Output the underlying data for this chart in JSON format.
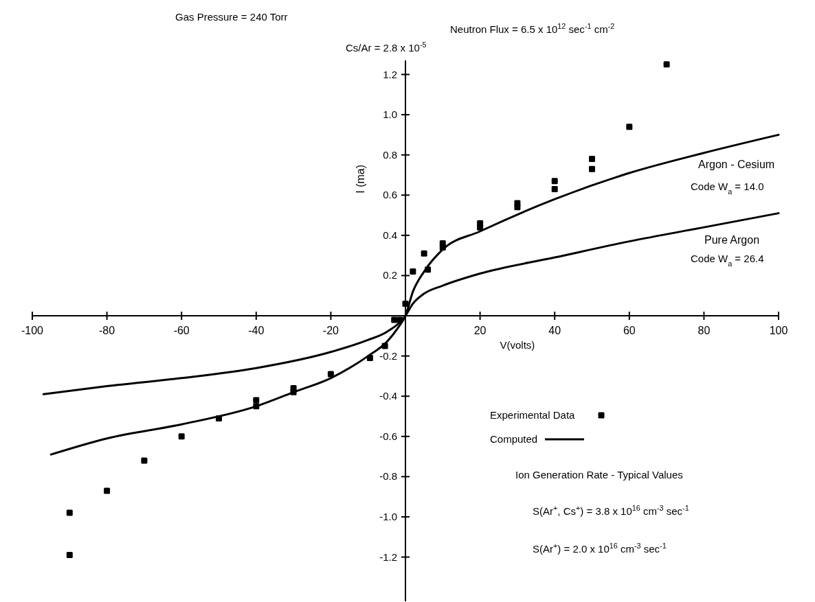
{
  "chart_data": {
    "type": "scatter",
    "xlabel": "V(volts)",
    "ylabel": "I (ma)",
    "xlim": [
      -100,
      100
    ],
    "ylim": [
      -1.42,
      1.27
    ],
    "xticks": [
      -100,
      -80,
      -60,
      -40,
      -20,
      20,
      40,
      60,
      80,
      100
    ],
    "yticks": [
      {
        "value": 1.2,
        "label": "1.2"
      },
      {
        "value": 1,
        "label": "1.0"
      },
      0.8,
      0.6,
      0.4,
      0.2,
      -0.2,
      -0.4,
      -0.6,
      -0.8,
      {
        "value": -1,
        "label": "-1.0"
      },
      -1.2
    ],
    "grid": false,
    "legend": "bottom right",
    "marker": "square",
    "series": [
      {
        "name": "Experimental Data",
        "color": "#000000",
        "x": [
          0,
          2,
          5,
          6,
          10,
          10,
          20,
          20,
          30,
          30,
          40,
          40,
          50,
          50,
          60,
          70,
          -1.5,
          -3,
          -5.5,
          -9.5,
          -20,
          -30,
          -30,
          -40,
          -40,
          -50,
          -60,
          -70,
          -80,
          -90,
          -90
        ],
        "values": [
          0.06,
          0.22,
          0.31,
          0.23,
          0.36,
          0.34,
          0.46,
          0.44,
          0.56,
          0.54,
          0.67,
          0.63,
          0.78,
          0.73,
          0.94,
          1.25,
          -0.02,
          -0.02,
          -0.15,
          -0.21,
          -0.29,
          -0.36,
          -0.38,
          -0.42,
          -0.45,
          -0.51,
          -0.6,
          -0.72,
          -0.87,
          -0.98,
          -1.19
        ]
      },
      {
        "name": "Argon - Cesium",
        "type": "line",
        "marker": "none",
        "color": "#000000",
        "line_style": "solid",
        "x": [
          -95,
          -80,
          -60,
          -40,
          -30,
          -20,
          -10,
          -5,
          -2,
          0,
          2,
          5,
          10,
          20,
          40,
          60,
          80,
          100
        ],
        "values": [
          -0.69,
          -0.61,
          -0.54,
          -0.45,
          -0.38,
          -0.31,
          -0.2,
          -0.13,
          -0.06,
          0,
          0.12,
          0.22,
          0.33,
          0.42,
          0.58,
          0.71,
          0.81,
          0.9
        ]
      },
      {
        "name": "Pure Argon",
        "type": "line",
        "marker": "none",
        "color": "#000000",
        "line_style": "solid",
        "x": [
          -97,
          -80,
          -60,
          -40,
          -20,
          -10,
          -5,
          0,
          2,
          5,
          10,
          20,
          40,
          60,
          80,
          100
        ],
        "values": [
          -0.39,
          -0.35,
          -0.31,
          -0.26,
          -0.18,
          -0.12,
          -0.08,
          0,
          0.06,
          0.11,
          0.15,
          0.21,
          0.29,
          0.37,
          0.44,
          0.51
        ]
      }
    ],
    "annotations": [
      "Gas Pressure = 240 Torr",
      "Neutron Flux = 6.5 x 10$^{12}$ sec$^{-1}$ cm$^{-2}$",
      "Cs/Ar = 2.8 x 10$^{-5}$",
      "Code W$_{a}$ = 14.0",
      "Code W$_{a}$ = 26.4",
      "Computed",
      "Ion Generation Rate - Typical Values",
      "S(Ar$^{+}$, Cs$^{+}$) = 3.8 x 10$^{16}$ cm$^{-3}$ sec$^{-1}$",
      "S(Ar$^{+}$) = 2.0 x 10$^{16}$ cm$^{-3}$ sec$^{-1}$"
    ]
  }
}
